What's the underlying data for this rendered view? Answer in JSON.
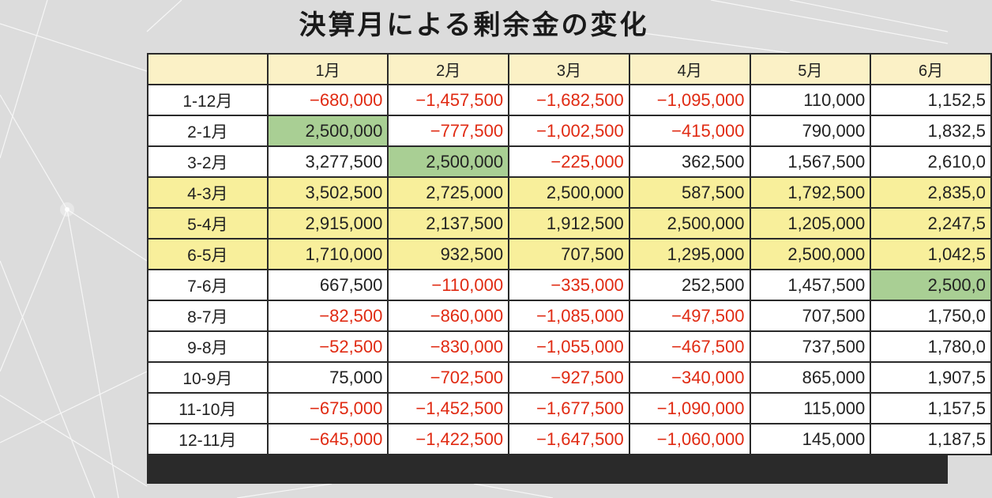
{
  "title": "決算月による剰余金の変化",
  "table": {
    "columns": [
      "",
      "1月",
      "2月",
      "3月",
      "4月",
      "5月",
      "6月"
    ],
    "rows": [
      {
        "label": "1-12月",
        "highlight": false,
        "values": [
          "−680,000",
          "−1,457,500",
          "−1,682,500",
          "−1,095,000",
          "110,000",
          "1,152,5"
        ],
        "negative": [
          true,
          true,
          true,
          true,
          false,
          false
        ],
        "green": -1
      },
      {
        "label": "2-1月",
        "highlight": false,
        "values": [
          "2,500,000",
          "−777,500",
          "−1,002,500",
          "−415,000",
          "790,000",
          "1,832,5"
        ],
        "negative": [
          false,
          true,
          true,
          true,
          false,
          false
        ],
        "green": 0
      },
      {
        "label": "3-2月",
        "highlight": false,
        "values": [
          "3,277,500",
          "2,500,000",
          "−225,000",
          "362,500",
          "1,567,500",
          "2,610,0"
        ],
        "negative": [
          false,
          false,
          true,
          false,
          false,
          false
        ],
        "green": 1
      },
      {
        "label": "4-3月",
        "highlight": true,
        "values": [
          "3,502,500",
          "2,725,000",
          "2,500,000",
          "587,500",
          "1,792,500",
          "2,835,0"
        ],
        "negative": [
          false,
          false,
          false,
          false,
          false,
          false
        ],
        "green": -1
      },
      {
        "label": "5-4月",
        "highlight": true,
        "values": [
          "2,915,000",
          "2,137,500",
          "1,912,500",
          "2,500,000",
          "1,205,000",
          "2,247,5"
        ],
        "negative": [
          false,
          false,
          false,
          false,
          false,
          false
        ],
        "green": -1
      },
      {
        "label": "6-5月",
        "highlight": true,
        "values": [
          "1,710,000",
          "932,500",
          "707,500",
          "1,295,000",
          "2,500,000",
          "1,042,5"
        ],
        "negative": [
          false,
          false,
          false,
          false,
          false,
          false
        ],
        "green": -1
      },
      {
        "label": "7-6月",
        "highlight": false,
        "values": [
          "667,500",
          "−110,000",
          "−335,000",
          "252,500",
          "1,457,500",
          "2,500,0"
        ],
        "negative": [
          false,
          true,
          true,
          false,
          false,
          false
        ],
        "green": 5
      },
      {
        "label": "8-7月",
        "highlight": false,
        "values": [
          "−82,500",
          "−860,000",
          "−1,085,000",
          "−497,500",
          "707,500",
          "1,750,0"
        ],
        "negative": [
          true,
          true,
          true,
          true,
          false,
          false
        ],
        "green": -1
      },
      {
        "label": "9-8月",
        "highlight": false,
        "values": [
          "−52,500",
          "−830,000",
          "−1,055,000",
          "−467,500",
          "737,500",
          "1,780,0"
        ],
        "negative": [
          true,
          true,
          true,
          true,
          false,
          false
        ],
        "green": -1
      },
      {
        "label": "10-9月",
        "highlight": false,
        "values": [
          "75,000",
          "−702,500",
          "−927,500",
          "−340,000",
          "865,000",
          "1,907,5"
        ],
        "negative": [
          false,
          true,
          true,
          true,
          false,
          false
        ],
        "green": -1
      },
      {
        "label": "11-10月",
        "highlight": false,
        "values": [
          "−675,000",
          "−1,452,500",
          "−1,677,500",
          "−1,090,000",
          "115,000",
          "1,157,5"
        ],
        "negative": [
          true,
          true,
          true,
          true,
          false,
          false
        ],
        "green": -1
      },
      {
        "label": "12-11月",
        "highlight": false,
        "values": [
          "−645,000",
          "−1,422,500",
          "−1,647,500",
          "−1,060,000",
          "145,000",
          "1,187,5"
        ],
        "negative": [
          true,
          true,
          true,
          true,
          false,
          false
        ],
        "green": -1
      }
    ]
  },
  "colors": {
    "header_bg": "#fbf1c6",
    "highlight_row_bg": "#f8ef9b",
    "green_cell_bg": "#a9cf94",
    "negative_text": "#e02a12"
  }
}
